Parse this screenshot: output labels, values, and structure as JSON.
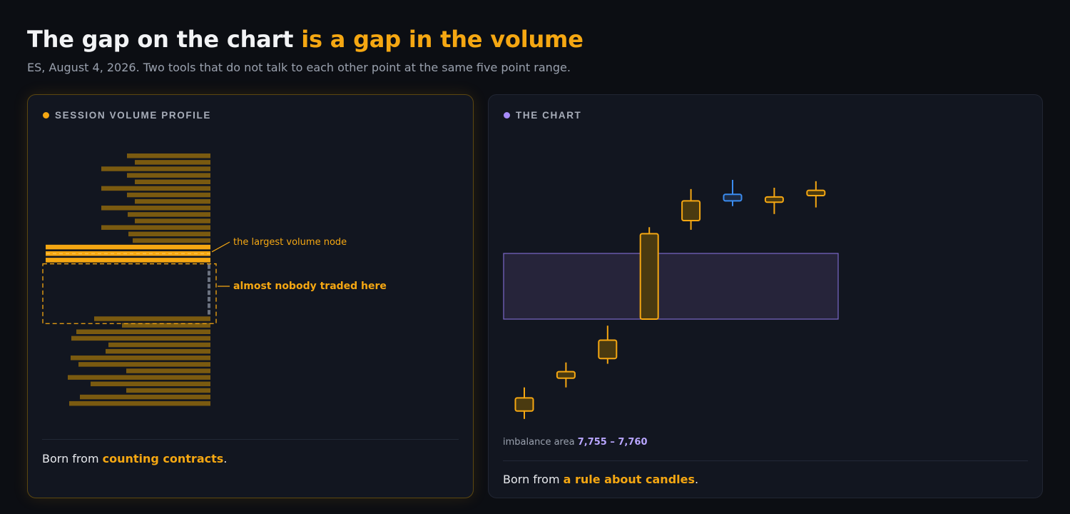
{
  "header": {
    "title_plain": "The gap on the chart ",
    "title_accent": "is a gap in the volume",
    "subtitle": "ES, August 4, 2026. Two tools that do not talk to each other point at the same five point range."
  },
  "colors": {
    "accent": "#f5a712",
    "volume_bar": "#7a5a10",
    "gap_marker": "#6b7280",
    "imbalance_fill": "#2a2740",
    "imbalance_stroke": "#7b68c8",
    "purple": "#a78bfa",
    "blue": "#3b8cf0"
  },
  "left_panel": {
    "label": "SESSION VOLUME PROFILE",
    "annotation_hvn": "the largest volume node",
    "annotation_gap": "almost nobody traded here",
    "footer_prefix": "Born from ",
    "footer_highlight": "counting contracts",
    "footer_suffix": "."
  },
  "right_panel": {
    "label": "THE CHART",
    "range_prefix": "imbalance area ",
    "range_value": "7,755 – 7,760",
    "footer_prefix": "Born from ",
    "footer_highlight": "a rule about candles",
    "footer_suffix": "."
  },
  "chart_data": [
    {
      "type": "bar",
      "orientation": "horizontal",
      "description_role": "volume profile, one bar per price row, top to bottom",
      "values": [
        117,
        106,
        153,
        117,
        106,
        153,
        117,
        106,
        153,
        116,
        106,
        153,
        115,
        109,
        231,
        231,
        231,
        3,
        3,
        3,
        3,
        3,
        3,
        3,
        3,
        163,
        124,
        188,
        195,
        143,
        147,
        196,
        185,
        118,
        200,
        168,
        118,
        183,
        198
      ],
      "highlight_rows": [
        14,
        15,
        16
      ],
      "gap_rows": [
        17,
        18,
        19,
        20,
        21,
        22,
        23,
        24
      ],
      "annotations": [
        "the largest volume node",
        "almost nobody traded here"
      ]
    },
    {
      "type": "candlestick",
      "imbalance_area": [
        7755,
        7760
      ],
      "candles": [
        {
          "open": 7748.0,
          "close": 7749.0,
          "high": 7749.8,
          "low": 7747.4,
          "color": "orange"
        },
        {
          "open": 7750.5,
          "close": 7751.0,
          "high": 7751.7,
          "low": 7749.8,
          "color": "orange"
        },
        {
          "open": 7752.0,
          "close": 7753.4,
          "high": 7754.5,
          "low": 7751.6,
          "color": "orange"
        },
        {
          "open": 7755.0,
          "close": 7761.5,
          "high": 7762.0,
          "low": 7755.0,
          "color": "orange"
        },
        {
          "open": 7762.5,
          "close": 7764.0,
          "high": 7764.9,
          "low": 7761.8,
          "color": "orange"
        },
        {
          "open": 7764.0,
          "close": 7764.5,
          "high": 7765.6,
          "low": 7763.6,
          "color": "blue"
        },
        {
          "open": 7763.9,
          "close": 7764.3,
          "high": 7765.0,
          "low": 7763.0,
          "color": "orange"
        },
        {
          "open": 7764.4,
          "close": 7764.8,
          "high": 7765.5,
          "low": 7763.5,
          "color": "orange"
        }
      ]
    }
  ]
}
